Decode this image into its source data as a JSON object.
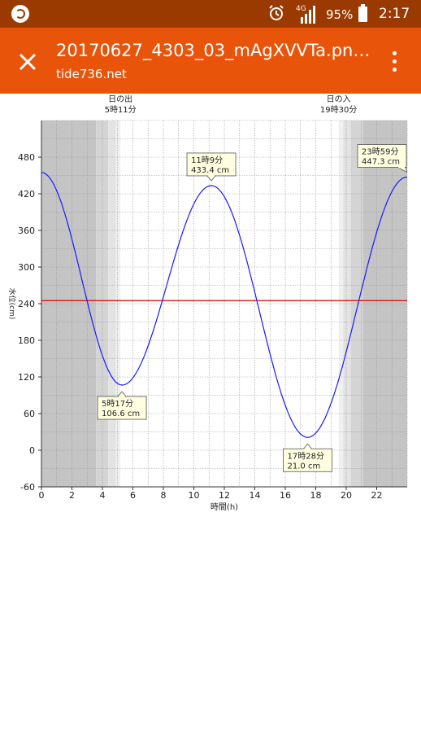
{
  "status_bar": {
    "network_label": "4G",
    "battery_text": "95%",
    "time": "2:17",
    "icons": [
      "app-icon",
      "alarm-icon",
      "signal-icon",
      "battery-icon"
    ]
  },
  "app_bar": {
    "title": "20170627_4303_03_mAgXVVTa.pn…",
    "subtitle": "tide736.net",
    "background_color": "#e8540a",
    "icons": [
      "close-icon",
      "overflow-menu-icon"
    ]
  },
  "chart_data": {
    "type": "line",
    "xlabel": "時間(h)",
    "ylabel": "水位(cm)",
    "xlim": [
      0,
      24
    ],
    "ylim": [
      -60,
      540
    ],
    "x_ticks": [
      0,
      2,
      4,
      6,
      8,
      10,
      12,
      14,
      16,
      18,
      20,
      22
    ],
    "y_ticks": [
      -60,
      0,
      60,
      120,
      180,
      240,
      300,
      360,
      420,
      480
    ],
    "grid": true,
    "reference_line": {
      "y": 245,
      "color": "#e00000"
    },
    "line_color": "#1a1aff",
    "sun_events": [
      {
        "label": "日の出",
        "time": "5時11分",
        "hour": 5.18
      },
      {
        "label": "日の入",
        "time": "19時30分",
        "hour": 19.5
      }
    ],
    "extremes": [
      {
        "kind": "low",
        "hour": 5.283,
        "value": 106.6,
        "time_label": "5時17分",
        "value_label": "106.6 cm"
      },
      {
        "kind": "high",
        "hour": 11.15,
        "value": 433.4,
        "time_label": "11時9分",
        "value_label": "433.4 cm"
      },
      {
        "kind": "low",
        "hour": 17.467,
        "value": 21.0,
        "time_label": "17時28分",
        "value_label": "21.0 cm"
      },
      {
        "kind": "high",
        "hour": 23.983,
        "value": 447.3,
        "time_label": "23時59分",
        "value_label": "447.3 cm"
      }
    ],
    "start_value": 455
  }
}
